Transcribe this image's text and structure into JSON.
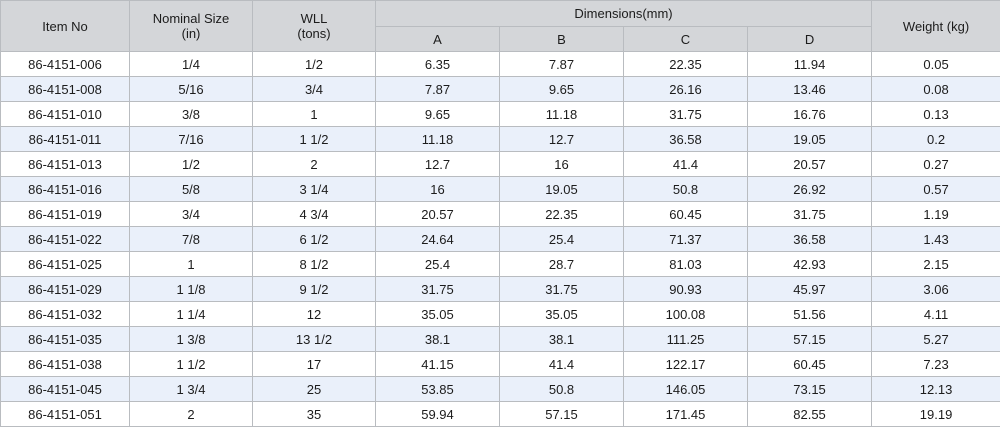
{
  "table": {
    "headers": {
      "item_no": "Item No",
      "nominal_size": {
        "line1": "Nominal Size",
        "line2": "(in)"
      },
      "wll": {
        "line1": "WLL",
        "line2": "(tons)"
      },
      "dimensions": "Dimensions(mm)",
      "dim_a": "A",
      "dim_b": "B",
      "dim_c": "C",
      "dim_d": "D",
      "weight": "Weight (kg)"
    },
    "rows": [
      {
        "item": "86-4151-006",
        "size": "1/4",
        "wll": "1/2",
        "a": "6.35",
        "b": "7.87",
        "c": "22.35",
        "d": "11.94",
        "weight": "0.05"
      },
      {
        "item": "86-4151-008",
        "size": "5/16",
        "wll": "3/4",
        "a": "7.87",
        "b": "9.65",
        "c": "26.16",
        "d": "13.46",
        "weight": "0.08"
      },
      {
        "item": "86-4151-010",
        "size": "3/8",
        "wll": "1",
        "a": "9.65",
        "b": "11.18",
        "c": "31.75",
        "d": "16.76",
        "weight": "0.13"
      },
      {
        "item": "86-4151-011",
        "size": "7/16",
        "wll": "1 1/2",
        "a": "11.18",
        "b": "12.7",
        "c": "36.58",
        "d": "19.05",
        "weight": "0.2"
      },
      {
        "item": "86-4151-013",
        "size": "1/2",
        "wll": "2",
        "a": "12.7",
        "b": "16",
        "c": "41.4",
        "d": "20.57",
        "weight": "0.27"
      },
      {
        "item": "86-4151-016",
        "size": "5/8",
        "wll": "3 1/4",
        "a": "16",
        "b": "19.05",
        "c": "50.8",
        "d": "26.92",
        "weight": "0.57"
      },
      {
        "item": "86-4151-019",
        "size": "3/4",
        "wll": "4 3/4",
        "a": "20.57",
        "b": "22.35",
        "c": "60.45",
        "d": "31.75",
        "weight": "1.19"
      },
      {
        "item": "86-4151-022",
        "size": "7/8",
        "wll": "6 1/2",
        "a": "24.64",
        "b": "25.4",
        "c": "71.37",
        "d": "36.58",
        "weight": "1.43"
      },
      {
        "item": "86-4151-025",
        "size": "1",
        "wll": "8 1/2",
        "a": "25.4",
        "b": "28.7",
        "c": "81.03",
        "d": "42.93",
        "weight": "2.15"
      },
      {
        "item": "86-4151-029",
        "size": "1 1/8",
        "wll": "9 1/2",
        "a": "31.75",
        "b": "31.75",
        "c": "90.93",
        "d": "45.97",
        "weight": "3.06"
      },
      {
        "item": "86-4151-032",
        "size": "1 1/4",
        "wll": "12",
        "a": "35.05",
        "b": "35.05",
        "c": "100.08",
        "d": "51.56",
        "weight": "4.11"
      },
      {
        "item": "86-4151-035",
        "size": "1 3/8",
        "wll": "13 1/2",
        "a": "38.1",
        "b": "38.1",
        "c": "111.25",
        "d": "57.15",
        "weight": "5.27"
      },
      {
        "item": "86-4151-038",
        "size": "1 1/2",
        "wll": "17",
        "a": "41.15",
        "b": "41.4",
        "c": "122.17",
        "d": "60.45",
        "weight": "7.23"
      },
      {
        "item": "86-4151-045",
        "size": "1 3/4",
        "wll": "25",
        "a": "53.85",
        "b": "50.8",
        "c": "146.05",
        "d": "73.15",
        "weight": "12.13"
      },
      {
        "item": "86-4151-051",
        "size": "2",
        "wll": "35",
        "a": "59.94",
        "b": "57.15",
        "c": "171.45",
        "d": "82.55",
        "weight": "19.19"
      }
    ]
  },
  "colors": {
    "header_bg": "#d4d6d9",
    "alt_row_bg": "#eaf0fa",
    "row_bg": "#ffffff",
    "border": "#b9bcc0"
  }
}
